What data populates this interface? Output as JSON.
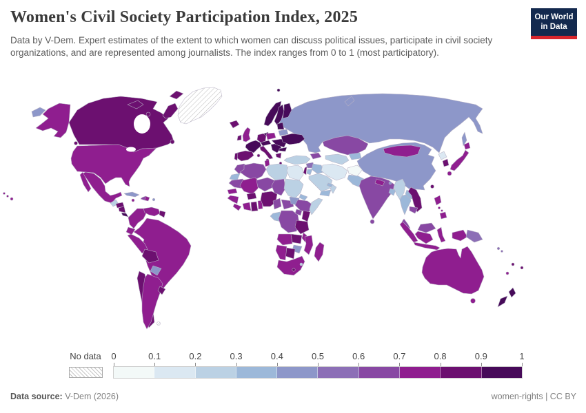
{
  "header": {
    "title": "Women's Civil Society Participation Index, 2025",
    "subtitle": "Data by V-Dem. Expert estimates of the extent to which women can discuss political issues, participate in civil society organizations, and are represented among journalists. The index ranges from 0 to 1 (most participatory).",
    "logo": {
      "line1": "Our World",
      "line2": "in Data",
      "bg_color": "#13294e",
      "stripe_color": "#d8252c"
    }
  },
  "legend": {
    "no_data_label": "No data",
    "ticks": [
      "0",
      "0.1",
      "0.2",
      "0.3",
      "0.4",
      "0.5",
      "0.6",
      "0.7",
      "0.8",
      "0.9",
      "1"
    ],
    "colors": [
      "#f3f9f8",
      "#dbe8f2",
      "#bbd1e4",
      "#9cb8d9",
      "#8d97c9",
      "#8c6fb6",
      "#8848a3",
      "#8f1e8f",
      "#6c1070",
      "#470a59"
    ],
    "no_data_hatch_color": "#c4c4c4"
  },
  "footer": {
    "source_label": "Data source:",
    "source_value": "V-Dem (2026)",
    "license_text": "women-rights | CC BY"
  },
  "chart_data": {
    "type": "heatmap",
    "subtype": "choropleth-world-map",
    "title": "Women's Civil Society Participation Index, 2025",
    "value_range": [
      0,
      1
    ],
    "bin_size": 0.1,
    "legend_position": "bottom",
    "no_data": [
      "Greenland",
      "Falkland Islands"
    ],
    "countries": [
      {
        "id": "greenland",
        "name": "Greenland",
        "value": null
      },
      {
        "id": "falkland",
        "name": "Falkland Islands",
        "value": null
      },
      {
        "id": "canada",
        "name": "Canada",
        "value": 0.85
      },
      {
        "id": "usa",
        "name": "United States",
        "value": 0.75
      },
      {
        "id": "mexico",
        "name": "Mexico",
        "value": 0.75
      },
      {
        "id": "guatemala",
        "name": "Guatemala",
        "value": 0.25
      },
      {
        "id": "honduras",
        "name": "Honduras",
        "value": 0.85
      },
      {
        "id": "nicaragua",
        "name": "Nicaragua",
        "value": 0.85
      },
      {
        "id": "costarica",
        "name": "Costa Rica",
        "value": 0.95
      },
      {
        "id": "panama",
        "name": "Panama",
        "value": 0.75
      },
      {
        "id": "cuba",
        "name": "Cuba",
        "value": 0.45
      },
      {
        "id": "jamaica",
        "name": "Jamaica",
        "value": 0.75
      },
      {
        "id": "haiti",
        "name": "Haiti",
        "value": 0.65
      },
      {
        "id": "domrep",
        "name": "Dominican Republic",
        "value": 0.75
      },
      {
        "id": "puertorico",
        "name": "Puerto Rico",
        "value": 0.45
      },
      {
        "id": "colombia",
        "name": "Colombia",
        "value": 0.75
      },
      {
        "id": "venezuela",
        "name": "Venezuela",
        "value": 0.75
      },
      {
        "id": "guyana",
        "name": "Guyana",
        "value": 0.85
      },
      {
        "id": "ecuador",
        "name": "Ecuador",
        "value": 0.75
      },
      {
        "id": "peru",
        "name": "Peru",
        "value": 0.75
      },
      {
        "id": "brazil",
        "name": "Brazil",
        "value": 0.75
      },
      {
        "id": "bolivia",
        "name": "Bolivia",
        "value": 0.85
      },
      {
        "id": "paraguay",
        "name": "Paraguay",
        "value": 0.45
      },
      {
        "id": "chile",
        "name": "Chile",
        "value": 0.85
      },
      {
        "id": "argentina",
        "name": "Argentina",
        "value": 0.75
      },
      {
        "id": "uruguay",
        "name": "Uruguay",
        "value": 0.85
      },
      {
        "id": "iceland",
        "name": "Iceland",
        "value": 0.85
      },
      {
        "id": "ireland",
        "name": "Ireland",
        "value": 0.85
      },
      {
        "id": "uk",
        "name": "United Kingdom",
        "value": 0.75
      },
      {
        "id": "norway",
        "name": "Norway",
        "value": 0.95
      },
      {
        "id": "sweden",
        "name": "Sweden",
        "value": 0.95
      },
      {
        "id": "finland",
        "name": "Finland",
        "value": 0.95
      },
      {
        "id": "denmark",
        "name": "Denmark",
        "value": 0.95
      },
      {
        "id": "baltics",
        "name": "Baltic states",
        "value": 0.95
      },
      {
        "id": "belarus",
        "name": "Belarus",
        "value": 0.45
      },
      {
        "id": "poland",
        "name": "Poland",
        "value": 0.75
      },
      {
        "id": "germany",
        "name": "Germany",
        "value": 0.85
      },
      {
        "id": "france",
        "name": "France",
        "value": 0.95
      },
      {
        "id": "central_europe",
        "name": "Czechia/Austria/Switzerland",
        "value": 0.95
      },
      {
        "id": "italy",
        "name": "Italy",
        "value": 0.85
      },
      {
        "id": "spain",
        "name": "Spain",
        "value": 0.85
      },
      {
        "id": "portugal",
        "name": "Portugal",
        "value": 0.85
      },
      {
        "id": "balkans",
        "name": "Western Balkans",
        "value": 0.95
      },
      {
        "id": "greece",
        "name": "Greece",
        "value": 0.85
      },
      {
        "id": "romania_hungary",
        "name": "Romania/Hungary",
        "value": 0.95
      },
      {
        "id": "bulgaria",
        "name": "Bulgaria",
        "value": 0.95
      },
      {
        "id": "ukraine",
        "name": "Ukraine",
        "value": 0.95
      },
      {
        "id": "russia",
        "name": "Russia",
        "value": 0.45
      },
      {
        "id": "kazakhstan",
        "name": "Kazakhstan",
        "value": 0.65
      },
      {
        "id": "uzbek_turkmen",
        "name": "Uzbekistan/Turkmenistan",
        "value": 0.25
      },
      {
        "id": "kyrgyz_tajik",
        "name": "Kyrgyzstan/Tajikistan",
        "value": 0.35
      },
      {
        "id": "caucasus",
        "name": "Georgia/Armenia/Azerbaijan",
        "value": 0.65
      },
      {
        "id": "turkey",
        "name": "Turkey",
        "value": 0.25
      },
      {
        "id": "syria",
        "name": "Syria",
        "value": 0.55
      },
      {
        "id": "lebanon_israel",
        "name": "Lebanon/Israel",
        "value": 0.85
      },
      {
        "id": "jordan",
        "name": "Jordan",
        "value": 0.35
      },
      {
        "id": "iraq",
        "name": "Iraq",
        "value": 0.35
      },
      {
        "id": "saudi",
        "name": "Saudi Arabia",
        "value": 0.25
      },
      {
        "id": "yemen",
        "name": "Yemen",
        "value": 0.35
      },
      {
        "id": "oman",
        "name": "Oman",
        "value": 0.25
      },
      {
        "id": "uae",
        "name": "United Arab Emirates",
        "value": 0.35
      },
      {
        "id": "iran",
        "name": "Iran",
        "value": 0.15
      },
      {
        "id": "afghanistan",
        "name": "Afghanistan",
        "value": 0.05
      },
      {
        "id": "pakistan",
        "name": "Pakistan",
        "value": 0.35
      },
      {
        "id": "india",
        "name": "India",
        "value": 0.65
      },
      {
        "id": "nepal",
        "name": "Nepal",
        "value": 0.75
      },
      {
        "id": "bhutan",
        "name": "Bhutan",
        "value": 0.45
      },
      {
        "id": "bangladesh",
        "name": "Bangladesh",
        "value": 0.35
      },
      {
        "id": "srilanka",
        "name": "Sri Lanka",
        "value": 0.65
      },
      {
        "id": "myanmar",
        "name": "Myanmar",
        "value": 0.25
      },
      {
        "id": "thailand",
        "name": "Thailand",
        "value": 0.35
      },
      {
        "id": "laos",
        "name": "Laos",
        "value": 0.35
      },
      {
        "id": "vietnam",
        "name": "Vietnam",
        "value": 0.85
      },
      {
        "id": "cambodia",
        "name": "Cambodia",
        "value": 0.65
      },
      {
        "id": "malaysia",
        "name": "Malaysia",
        "value": 0.65
      },
      {
        "id": "china",
        "name": "China",
        "value": 0.45
      },
      {
        "id": "mongolia",
        "name": "Mongolia",
        "value": 0.75
      },
      {
        "id": "northkorea",
        "name": "North Korea",
        "value": 0.15
      },
      {
        "id": "southkorea",
        "name": "South Korea",
        "value": 0.85
      },
      {
        "id": "japan",
        "name": "Japan",
        "value": 0.75
      },
      {
        "id": "taiwan",
        "name": "Taiwan",
        "value": 0.85
      },
      {
        "id": "philippines",
        "name": "Philippines",
        "value": 0.75
      },
      {
        "id": "indonesia",
        "name": "Indonesia",
        "value": 0.75
      },
      {
        "id": "png",
        "name": "Papua New Guinea",
        "value": 0.55
      },
      {
        "id": "solomon",
        "name": "Solomon Islands",
        "value": 0.55
      },
      {
        "id": "vanuatu",
        "name": "Vanuatu",
        "value": 0.85
      },
      {
        "id": "fiji",
        "name": "Fiji",
        "value": 0.85
      },
      {
        "id": "newcaledonia",
        "name": "New Caledonia",
        "value": 0.75
      },
      {
        "id": "australia",
        "name": "Australia",
        "value": 0.75
      },
      {
        "id": "newzealand",
        "name": "New Zealand",
        "value": 0.95
      },
      {
        "id": "morocco",
        "name": "Morocco",
        "value": 0.65
      },
      {
        "id": "wsahara",
        "name": "Western Sahara",
        "value": 0.35
      },
      {
        "id": "algeria",
        "name": "Algeria",
        "value": 0.65
      },
      {
        "id": "tunisia",
        "name": "Tunisia",
        "value": 0.75
      },
      {
        "id": "libya",
        "name": "Libya",
        "value": 0.25
      },
      {
        "id": "egypt",
        "name": "Egypt",
        "value": 0.15
      },
      {
        "id": "mauritania",
        "name": "Mauritania",
        "value": 0.65
      },
      {
        "id": "senegal",
        "name": "Senegal",
        "value": 0.75
      },
      {
        "id": "guinea",
        "name": "Guinea",
        "value": 0.75
      },
      {
        "id": "sierraleone_liberia",
        "name": "Sierra Leone/Liberia",
        "value": 0.75
      },
      {
        "id": "mali",
        "name": "Mali",
        "value": 0.75
      },
      {
        "id": "burkina",
        "name": "Burkina Faso",
        "value": 0.85
      },
      {
        "id": "ivorycoast",
        "name": "Cote d'Ivoire",
        "value": 0.75
      },
      {
        "id": "ghana",
        "name": "Ghana",
        "value": 0.85
      },
      {
        "id": "togo_benin",
        "name": "Togo/Benin",
        "value": 0.75
      },
      {
        "id": "niger",
        "name": "Niger",
        "value": 0.65
      },
      {
        "id": "nigeria",
        "name": "Nigeria",
        "value": 0.85
      },
      {
        "id": "chad",
        "name": "Chad",
        "value": 0.65
      },
      {
        "id": "sudan",
        "name": "Sudan",
        "value": 0.25
      },
      {
        "id": "eritrea",
        "name": "Eritrea",
        "value": 0.35
      },
      {
        "id": "ethiopia",
        "name": "Ethiopia",
        "value": 0.65
      },
      {
        "id": "somalia",
        "name": "Somalia",
        "value": 0.25
      },
      {
        "id": "cameroon",
        "name": "Cameroon",
        "value": 0.65
      },
      {
        "id": "car",
        "name": "Central African Republic",
        "value": 0.65
      },
      {
        "id": "southsudan",
        "name": "South Sudan",
        "value": 0.45
      },
      {
        "id": "gabon_congo",
        "name": "Gabon/Congo",
        "value": 0.35
      },
      {
        "id": "drc",
        "name": "Democratic Republic of Congo",
        "value": 0.65
      },
      {
        "id": "uganda",
        "name": "Uganda",
        "value": 0.65
      },
      {
        "id": "kenya",
        "name": "Kenya",
        "value": 0.85
      },
      {
        "id": "tanzania",
        "name": "Tanzania",
        "value": 0.85
      },
      {
        "id": "angola",
        "name": "Angola",
        "value": 0.75
      },
      {
        "id": "zambia",
        "name": "Zambia",
        "value": 0.85
      },
      {
        "id": "malawi",
        "name": "Malawi",
        "value": 0.75
      },
      {
        "id": "mozambique",
        "name": "Mozambique",
        "value": 0.75
      },
      {
        "id": "zimbabwe",
        "name": "Zimbabwe",
        "value": 0.45
      },
      {
        "id": "botswana",
        "name": "Botswana",
        "value": 0.85
      },
      {
        "id": "namibia",
        "name": "Namibia",
        "value": 0.75
      },
      {
        "id": "southafrica",
        "name": "South Africa",
        "value": 0.75
      },
      {
        "id": "lesotho",
        "name": "Lesotho",
        "value": 0.85
      },
      {
        "id": "eswatini",
        "name": "Eswatini",
        "value": 0.25
      },
      {
        "id": "madagascar",
        "name": "Madagascar",
        "value": 0.75
      }
    ]
  }
}
